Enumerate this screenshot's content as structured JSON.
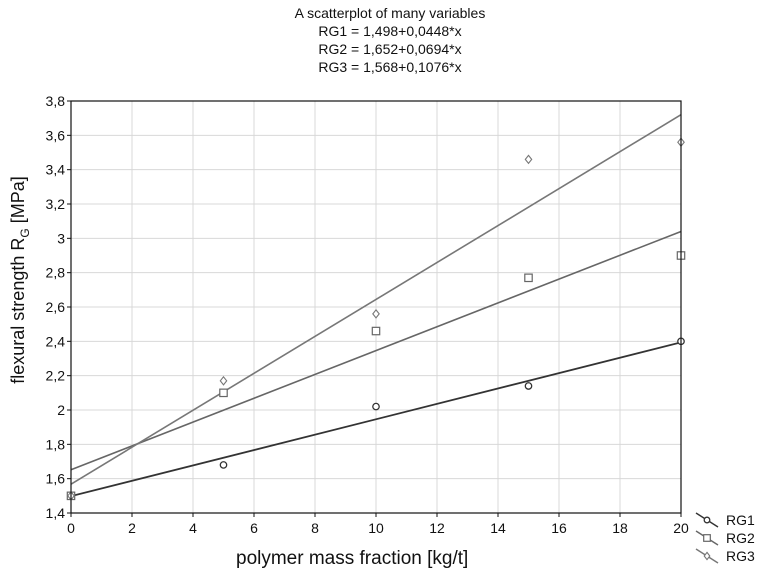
{
  "title": "A scatterplot of many variables",
  "equations": [
    "RG1 = 1,498+0,0448*x",
    "RG2 = 1,652+0,0694*x",
    "RG3 = 1,568+0,1076*x"
  ],
  "ylabel_main": "flexural strength R",
  "ylabel_sub": "G",
  "ylabel_unit": " [MPa]",
  "chart_data": {
    "type": "scatter",
    "title": "A scatterplot of many variables",
    "xlabel": "polymer mass fraction [kg/t]",
    "ylabel": "flexural strength RG [MPa]",
    "xlim": [
      0,
      20
    ],
    "ylim": [
      1.4,
      3.8
    ],
    "xticks": [
      0,
      2,
      4,
      6,
      8,
      10,
      12,
      14,
      16,
      18,
      20
    ],
    "yticks": [
      1.4,
      1.6,
      1.8,
      2.0,
      2.2,
      2.4,
      2.6,
      2.8,
      3.0,
      3.2,
      3.4,
      3.6,
      3.8
    ],
    "decimal_separator": ",",
    "grid": true,
    "legend_position": "bottom-right outside",
    "series": [
      {
        "name": "RG1",
        "marker": "circle",
        "color": "#333333",
        "x": [
          0,
          5,
          10,
          15,
          20
        ],
        "y": [
          1.5,
          1.68,
          2.02,
          2.14,
          2.4
        ],
        "fit": {
          "intercept": 1.498,
          "slope": 0.0448
        }
      },
      {
        "name": "RG2",
        "marker": "square",
        "color": "#666666",
        "x": [
          0,
          5,
          10,
          15,
          20
        ],
        "y": [
          1.5,
          2.1,
          2.46,
          2.77,
          2.9
        ],
        "fit": {
          "intercept": 1.652,
          "slope": 0.0694
        }
      },
      {
        "name": "RG3",
        "marker": "diamond",
        "color": "#777777",
        "x": [
          0,
          5,
          10,
          15,
          20
        ],
        "y": [
          1.5,
          2.17,
          2.56,
          3.46,
          3.56
        ],
        "fit": {
          "intercept": 1.568,
          "slope": 0.1076
        }
      }
    ]
  }
}
